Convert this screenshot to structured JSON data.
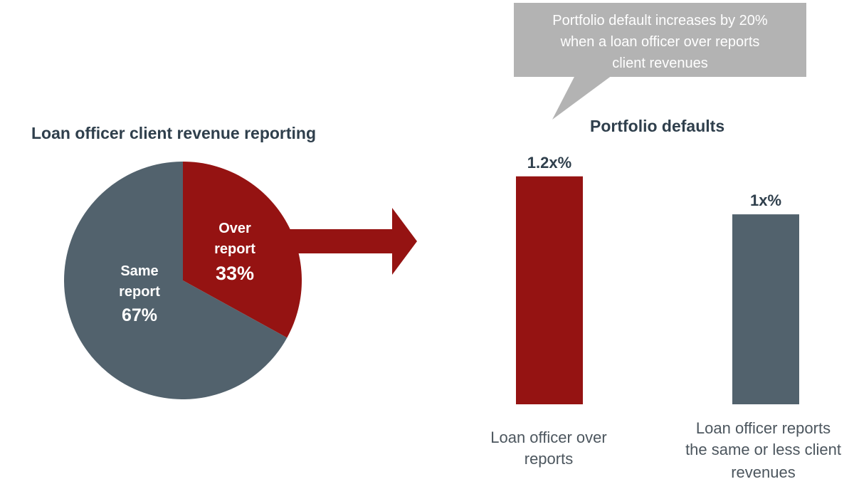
{
  "chart_data": [
    {
      "type": "pie",
      "title": "Loan officer client revenue reporting",
      "slices": [
        {
          "label_lines": [
            "Over",
            "report"
          ],
          "value": 33,
          "value_label": "33%",
          "color": "#951312"
        },
        {
          "label_lines": [
            "Same",
            "report"
          ],
          "value": 67,
          "value_label": "67%",
          "color": "#52626d"
        }
      ]
    },
    {
      "type": "bar",
      "title": "Portfolio defaults",
      "categories": [
        [
          "Loan officer over",
          "reports"
        ],
        [
          "Loan officer reports",
          "the same or less client",
          "revenues"
        ]
      ],
      "values": [
        1.2,
        1.0
      ],
      "data_labels": [
        "1.2x%",
        "1x%"
      ],
      "colors": [
        "#951312",
        "#52626d"
      ],
      "ylim": [
        0,
        1.6
      ],
      "grid": false,
      "annotation": {
        "lines": [
          "Portfolio default increases by 20%",
          "when a loan officer over reports",
          "client revenues"
        ],
        "color": "#b3b3b3"
      }
    }
  ],
  "arrow_color": "#951312"
}
